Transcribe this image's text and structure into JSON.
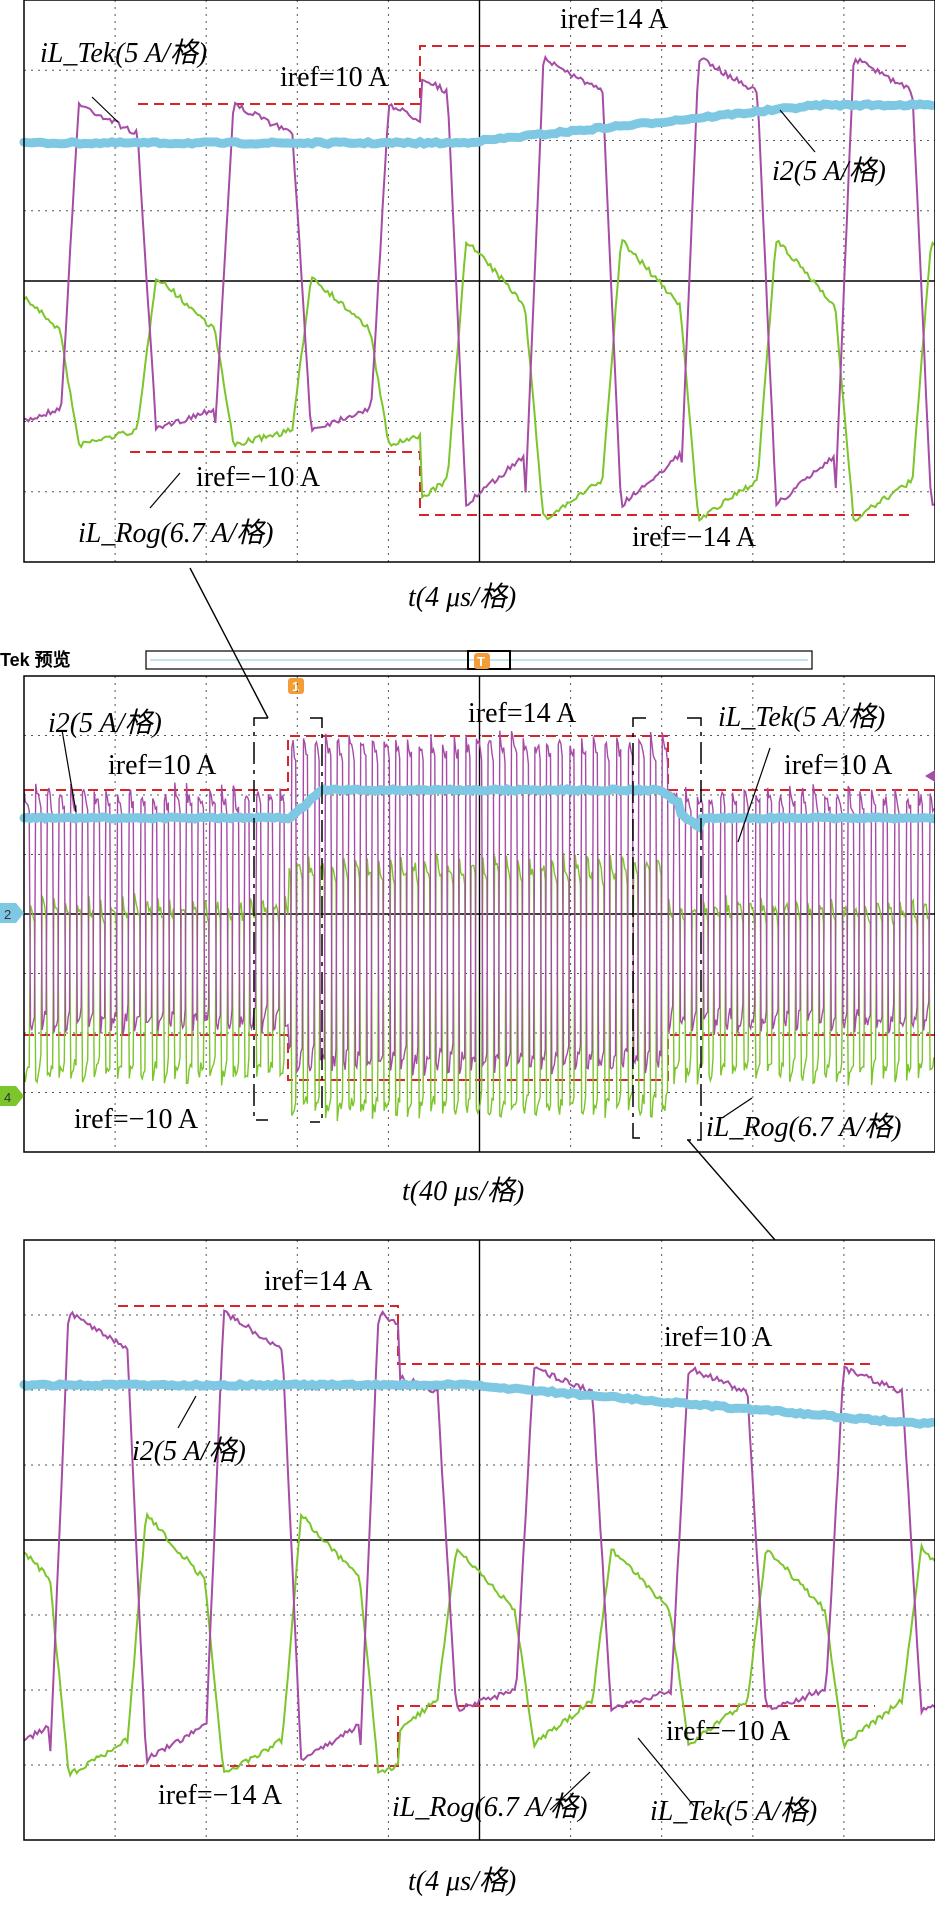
{
  "panels": [
    {
      "id": "top",
      "time_label": "t(4 μs/格)",
      "labels": {
        "tek": "iL_Tek(5 A/格)",
        "rog": "iL_Rog(6.7 A/格)",
        "i2": "i2(5 A/格)",
        "ref_a": "iref=10 A",
        "ref_b": "iref=14 A",
        "ref_c": "iref=−10 A",
        "ref_d": "iref=−14 A"
      }
    },
    {
      "id": "middle",
      "time_label": "t(40 μs/格)",
      "header": "Tek 预览",
      "marker_trigger": "T",
      "marker_cursor": "1",
      "marker_ch2": "2",
      "marker_ch4": "4",
      "labels": {
        "i2": "i2(5 A/格)",
        "ref_a": "iref=10 A",
        "ref_b": "iref=14 A",
        "tek": "iL_Tek(5 A/格)",
        "ref_c": "iref=10 A",
        "ref_d": "iref=−10 A",
        "rog": "iL_Rog(6.7 A/格)"
      }
    },
    {
      "id": "bottom",
      "time_label": "t(4 μs/格)",
      "labels": {
        "ref_a": "iref=14 A",
        "ref_b": "iref=10 A",
        "i2": "i2(5 A/格)",
        "ref_c": "iref=−14 A",
        "ref_d": "iref=−10 A",
        "rog": "iL_Rog(6.7 A/格)",
        "tek": "iL_Tek(5 A/格)"
      }
    }
  ],
  "chart_data": [
    {
      "type": "line",
      "x_unit": "μs",
      "x_division": "4 μs/格",
      "series": [
        {
          "name": "iL_Tek",
          "unit": "A",
          "scale": "5 A/格",
          "color": "#a64ca6",
          "iref_steps": [
            {
              "from_period": 0,
              "to_period": 3,
              "iref": 10
            },
            {
              "from_period": 3,
              "to_period": 6,
              "iref": 14
            }
          ]
        },
        {
          "name": "iL_Rog",
          "unit": "A",
          "scale": "6.7 A/格",
          "color": "#7cc52a"
        },
        {
          "name": "i2",
          "unit": "A",
          "scale": "5 A/格",
          "color": "#7ec8e3"
        }
      ],
      "iref": [
        10,
        14,
        -10,
        -14
      ]
    },
    {
      "type": "line",
      "x_unit": "μs",
      "x_division": "40 μs/格",
      "series": [
        {
          "name": "iL_Tek",
          "scale": "5 A/格",
          "color": "#a64ca6"
        },
        {
          "name": "iL_Rog",
          "scale": "6.7 A/格",
          "color": "#7cc52a"
        },
        {
          "name": "i2",
          "scale": "5 A/格",
          "color": "#7ec8e3"
        }
      ],
      "iref_sequence": [
        10,
        14,
        10
      ],
      "iref": [
        10,
        14,
        -10
      ]
    },
    {
      "type": "line",
      "x_unit": "μs",
      "x_division": "4 μs/格",
      "series": [
        {
          "name": "iL_Tek",
          "scale": "5 A/格",
          "color": "#a64ca6",
          "iref_steps": [
            {
              "from_period": 0,
              "to_period": 3,
              "iref": 14
            },
            {
              "from_period": 3,
              "to_period": 6,
              "iref": 10
            }
          ]
        },
        {
          "name": "iL_Rog",
          "scale": "6.7 A/格",
          "color": "#7cc52a"
        },
        {
          "name": "i2",
          "scale": "5 A/格",
          "color": "#7ec8e3"
        }
      ],
      "iref": [
        14,
        10,
        -14,
        -10
      ]
    }
  ]
}
